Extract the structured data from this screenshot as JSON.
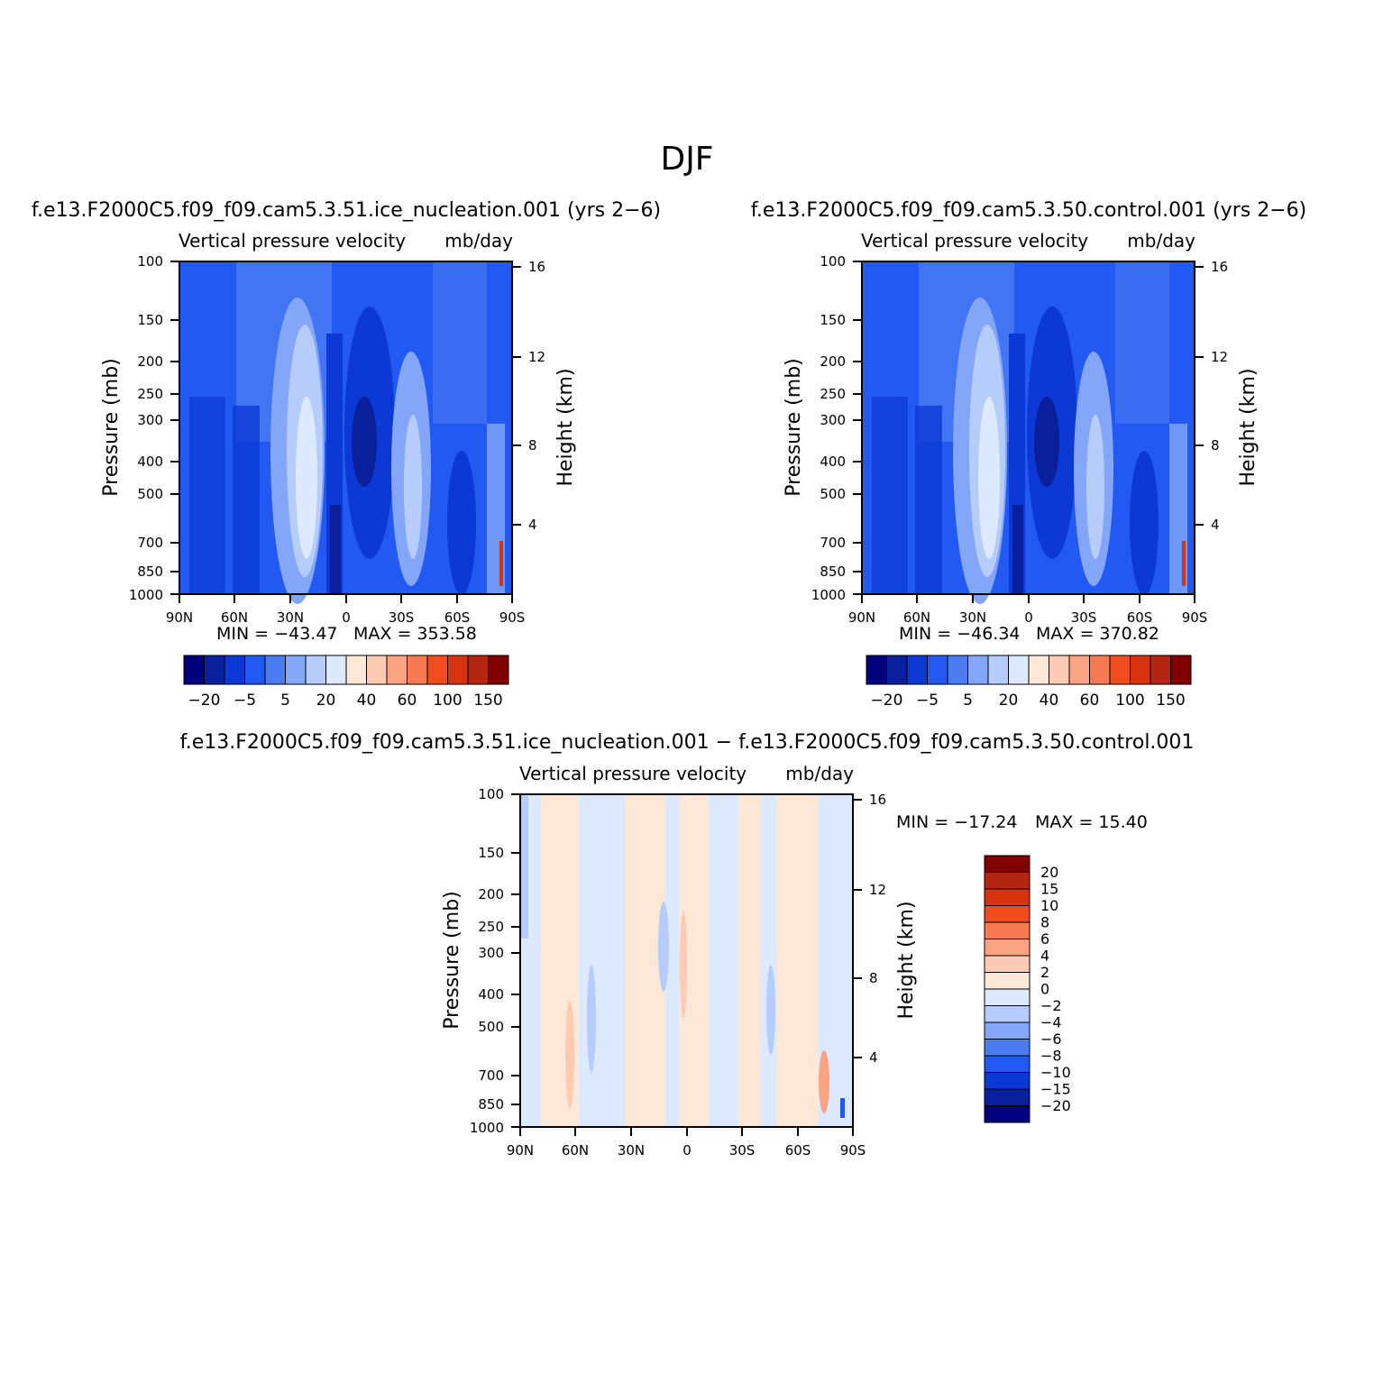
{
  "figure": {
    "title": "DJF"
  },
  "colors": {
    "palette": [
      "#00007d",
      "#0a1f9c",
      "#0c39d5",
      "#2259f2",
      "#4b7cf2",
      "#83a6f8",
      "#b6ccfb",
      "#dce9fe",
      "#fde8d8",
      "#fdcab4",
      "#fba383",
      "#f87a52",
      "#f04c20",
      "#d8330f",
      "#b52611",
      "#800000"
    ],
    "background": "#ffffff"
  },
  "chart_data": [
    {
      "type": "contour",
      "case_title": "f.e13.F2000C5.f09_f09.cam5.3.51.ice_nucleation.001  (yrs  2−6)",
      "variable": "Vertical  pressure  velocity",
      "units": "mb/day",
      "ylabel": "Pressure  (mb)",
      "ylabel_right": "Height  (km)",
      "x_ticks": [
        "90N",
        "60N",
        "30N",
        "0",
        "30S",
        "60S",
        "90S"
      ],
      "y_ticks": [
        "100",
        "150",
        "200",
        "250",
        "300",
        "400",
        "500",
        "700",
        "850",
        "1000"
      ],
      "y_right_ticks": [
        "16",
        "12",
        "8",
        "4"
      ],
      "min_label": "MIN  =  −43.47",
      "max_label": "MAX  =  353.58",
      "colorbar": {
        "orientation": "horizontal",
        "levels_shown": [
          "−20",
          "−5",
          "5",
          "20",
          "40",
          "60",
          "100",
          "150"
        ]
      }
    },
    {
      "type": "contour",
      "case_title": "f.e13.F2000C5.f09_f09.cam5.3.50.control.001  (yrs  2−6)",
      "variable": "Vertical  pressure  velocity",
      "units": "mb/day",
      "ylabel": "Pressure  (mb)",
      "ylabel_right": "Height  (km)",
      "x_ticks": [
        "90N",
        "60N",
        "30N",
        "0",
        "30S",
        "60S",
        "90S"
      ],
      "y_ticks": [
        "100",
        "150",
        "200",
        "250",
        "300",
        "400",
        "500",
        "700",
        "850",
        "1000"
      ],
      "y_right_ticks": [
        "16",
        "12",
        "8",
        "4"
      ],
      "min_label": "MIN  =  −46.34",
      "max_label": "MAX  =  370.82",
      "colorbar": {
        "orientation": "horizontal",
        "levels_shown": [
          "−20",
          "−5",
          "5",
          "20",
          "40",
          "60",
          "100",
          "150"
        ]
      }
    },
    {
      "type": "contour",
      "case_title": "f.e13.F2000C5.f09_f09.cam5.3.51.ice_nucleation.001  −  f.e13.F2000C5.f09_f09.cam5.3.50.control.001",
      "variable": "Vertical  pressure  velocity",
      "units": "mb/day",
      "ylabel": "Pressure  (mb)",
      "ylabel_right": "Height  (km)",
      "x_ticks": [
        "90N",
        "60N",
        "30N",
        "0",
        "30S",
        "60S",
        "90S"
      ],
      "y_ticks": [
        "100",
        "150",
        "200",
        "250",
        "300",
        "400",
        "500",
        "700",
        "850",
        "1000"
      ],
      "y_right_ticks": [
        "16",
        "12",
        "8",
        "4"
      ],
      "min_label": "MIN  =  −17.24",
      "max_label": "MAX  =    15.40",
      "colorbar": {
        "orientation": "vertical",
        "levels_shown": [
          "20",
          "15",
          "10",
          "8",
          "6",
          "4",
          "2",
          "0",
          "−2",
          "−4",
          "−6",
          "−8",
          "−10",
          "−15",
          "−20"
        ]
      }
    }
  ]
}
